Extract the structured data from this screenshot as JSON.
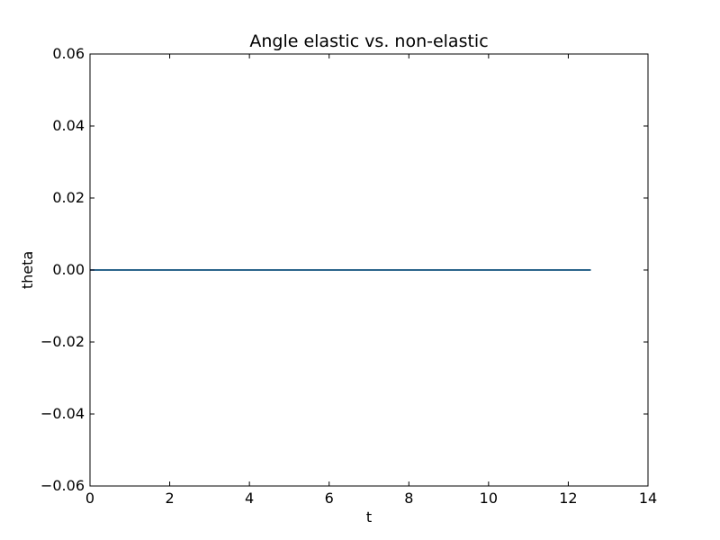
{
  "chart_data": {
    "type": "line",
    "title": "Angle elastic vs. non-elastic",
    "xlabel": "t",
    "ylabel": "theta",
    "xlim": [
      0,
      14
    ],
    "ylim": [
      -0.06,
      0.06
    ],
    "x_ticks": [
      0,
      2,
      4,
      6,
      8,
      10,
      12,
      14
    ],
    "x_tick_labels": [
      "0",
      "2",
      "4",
      "6",
      "8",
      "10",
      "12",
      "14"
    ],
    "y_ticks": [
      -0.06,
      -0.04,
      -0.02,
      0.0,
      0.02,
      0.04,
      0.06
    ],
    "y_tick_labels": [
      "−0.06",
      "−0.04",
      "−0.02",
      "0.00",
      "0.02",
      "0.04",
      "0.06"
    ],
    "grid": false,
    "series": [
      {
        "color": "#0000ff",
        "x": [
          0,
          12.566
        ],
        "y": [
          0,
          0
        ]
      },
      {
        "color": "#008000",
        "x": [
          0,
          12.566
        ],
        "y": [
          0,
          0
        ]
      }
    ]
  }
}
